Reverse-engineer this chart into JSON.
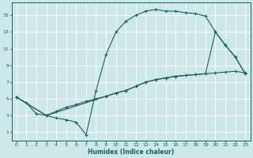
{
  "xlabel": "Humidex (Indice chaleur)",
  "bg_color": "#cce8e8",
  "grid_color": "#ffffff",
  "line_color": "#1a6060",
  "xlim": [
    -0.5,
    23.5
  ],
  "ylim": [
    0,
    16.5
  ],
  "xticks": [
    0,
    1,
    2,
    3,
    4,
    5,
    6,
    7,
    8,
    9,
    10,
    11,
    12,
    13,
    14,
    15,
    16,
    17,
    18,
    19,
    20,
    21,
    22,
    23
  ],
  "yticks": [
    1,
    3,
    5,
    7,
    9,
    11,
    13,
    15
  ],
  "line1_x": [
    0,
    1,
    2,
    3,
    4,
    5,
    6,
    7,
    8,
    9,
    10,
    11,
    12,
    13,
    14,
    15,
    16,
    17,
    18,
    19,
    20,
    21,
    22,
    23
  ],
  "line1_y": [
    5.2,
    4.5,
    3.2,
    3.0,
    2.7,
    2.5,
    2.2,
    0.7,
    6.0,
    10.3,
    13.0,
    14.3,
    15.0,
    15.5,
    15.7,
    15.5,
    15.5,
    15.3,
    15.2,
    14.9,
    13.0,
    11.4,
    10.0,
    8.0
  ],
  "line2_x": [
    0,
    3,
    9,
    10,
    11,
    12,
    13,
    14,
    15,
    16,
    17,
    18,
    19,
    20,
    21,
    22,
    23
  ],
  "line2_y": [
    5.2,
    3.0,
    5.3,
    5.7,
    6.0,
    6.5,
    7.0,
    7.3,
    7.5,
    7.7,
    7.8,
    7.9,
    8.0,
    13.0,
    11.4,
    10.0,
    8.0
  ],
  "line3_x": [
    0,
    3,
    4,
    5,
    6,
    7,
    8,
    9,
    10,
    11,
    12,
    13,
    14,
    15,
    16,
    17,
    18,
    19,
    20,
    21,
    22,
    23
  ],
  "line3_y": [
    5.2,
    3.0,
    3.5,
    4.0,
    4.3,
    4.7,
    5.0,
    5.3,
    5.7,
    6.0,
    6.5,
    7.0,
    7.3,
    7.5,
    7.7,
    7.8,
    7.9,
    8.0,
    8.1,
    8.2,
    8.3,
    8.1
  ]
}
